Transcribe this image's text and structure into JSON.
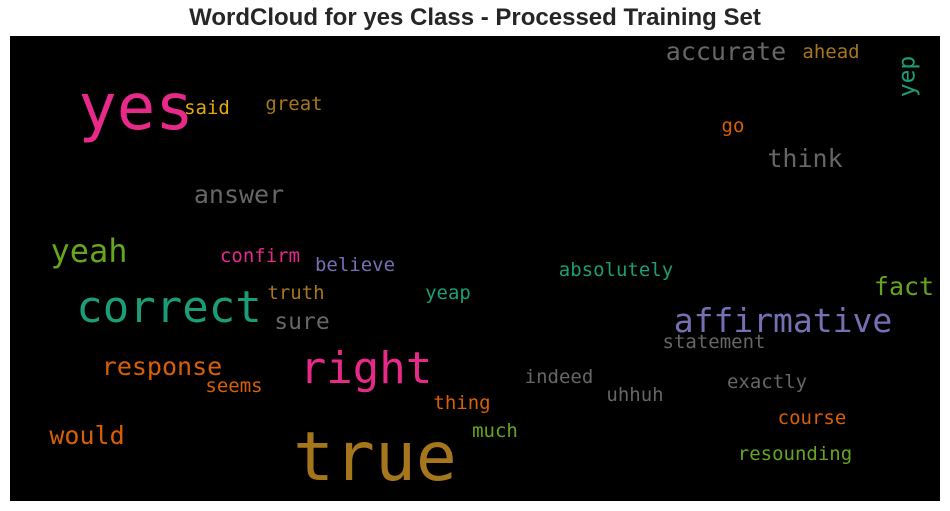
{
  "chart_data": {
    "type": "wordcloud",
    "title": "WordCloud for yes Class - Processed Training Set",
    "background": "#000000",
    "words": [
      {
        "text": "true",
        "color": "#a6761d"
      },
      {
        "text": "yes",
        "color": "#e7298a"
      },
      {
        "text": "correct",
        "color": "#1b9e77"
      },
      {
        "text": "right",
        "color": "#e7298a"
      },
      {
        "text": "affirmative",
        "color": "#7570b3"
      },
      {
        "text": "yeah",
        "color": "#66a61e"
      },
      {
        "text": "accurate",
        "color": "#666666"
      },
      {
        "text": "answer",
        "color": "#666666"
      },
      {
        "text": "think",
        "color": "#666666"
      },
      {
        "text": "response",
        "color": "#d95f02"
      },
      {
        "text": "would",
        "color": "#d95f02"
      },
      {
        "text": "fact",
        "color": "#66a61e"
      },
      {
        "text": "sure",
        "color": "#666666"
      },
      {
        "text": "yep",
        "color": "#1b9e77"
      },
      {
        "text": "ahead",
        "color": "#a6761d"
      },
      {
        "text": "great",
        "color": "#a6761d"
      },
      {
        "text": "said",
        "color": "#e6ab02"
      },
      {
        "text": "go",
        "color": "#d95f02"
      },
      {
        "text": "confirm",
        "color": "#e7298a"
      },
      {
        "text": "believe",
        "color": "#7570b3"
      },
      {
        "text": "truth",
        "color": "#a6761d"
      },
      {
        "text": "absolutely",
        "color": "#1b9e77"
      },
      {
        "text": "yeap",
        "color": "#1b9e77"
      },
      {
        "text": "statement",
        "color": "#666666"
      },
      {
        "text": "indeed",
        "color": "#666666"
      },
      {
        "text": "exactly",
        "color": "#666666"
      },
      {
        "text": "uhhuh",
        "color": "#666666"
      },
      {
        "text": "seems",
        "color": "#d95f02"
      },
      {
        "text": "thing",
        "color": "#d95f02"
      },
      {
        "text": "course",
        "color": "#d95f02"
      },
      {
        "text": "much",
        "color": "#66a61e"
      },
      {
        "text": "resounding",
        "color": "#66a61e"
      }
    ]
  }
}
